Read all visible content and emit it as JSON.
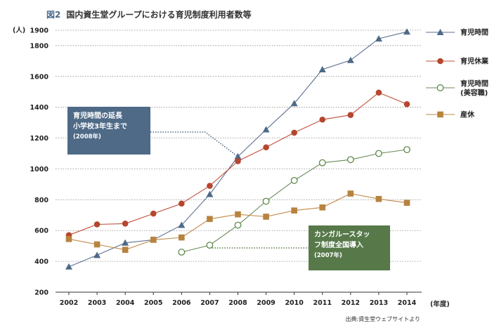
{
  "header": {
    "fig_label": "図2",
    "title_text": "国内資生堂グループにおける育児制度利用者数等"
  },
  "source": "出典:資生堂ウェブサイトより",
  "annotations": [
    {
      "lines": [
        "育児時間の延長",
        "小学校3年生まで"
      ],
      "note": "(2008年)",
      "color": "#4e6a87"
    },
    {
      "lines": [
        "カンガルースタッ",
        "フ制度全国導入"
      ],
      "note": "(2007年)",
      "color": "#57794a"
    }
  ],
  "chart_data": {
    "type": "line",
    "title": "図2　国内資生堂グループにおける育児制度利用者数等",
    "ylabel": "(人)",
    "xlabel": "(年度)",
    "ylim": [
      200,
      1900
    ],
    "yticks": [
      200,
      400,
      600,
      800,
      1000,
      1200,
      1400,
      1600,
      1800,
      1900
    ],
    "grid": true,
    "legend_position": "right",
    "x": [
      "2002",
      "2003",
      "2004",
      "2005",
      "2006",
      "2007",
      "2008",
      "2009",
      "2010",
      "2011",
      "2012",
      "2013",
      "2014"
    ],
    "series": [
      {
        "name": "育児時間",
        "marker": "triangle",
        "color": "#5b6f8f",
        "marker_color": "#4e6a87",
        "values": [
          365,
          440,
          520,
          540,
          635,
          835,
          1080,
          1255,
          1425,
          1645,
          1705,
          1845,
          1890
        ]
      },
      {
        "name": "育児休業",
        "marker": "circle",
        "color": "#c0503a",
        "marker_color": "#b5472f",
        "values": [
          570,
          640,
          645,
          710,
          775,
          890,
          1050,
          1140,
          1235,
          1320,
          1350,
          1495,
          1420
        ]
      },
      {
        "name": "育児時間\n(美容職)",
        "marker": "open-circle",
        "color": "#6a8a5a",
        "marker_color": "#5e8a4a",
        "values": [
          null,
          null,
          null,
          null,
          460,
          505,
          635,
          790,
          925,
          1040,
          1060,
          1100,
          1125
        ]
      },
      {
        "name": "産休",
        "marker": "square",
        "color": "#c08a4a",
        "marker_color": "#b7833f",
        "values": [
          545,
          510,
          475,
          540,
          555,
          675,
          705,
          690,
          730,
          750,
          840,
          805,
          780
        ]
      }
    ]
  }
}
